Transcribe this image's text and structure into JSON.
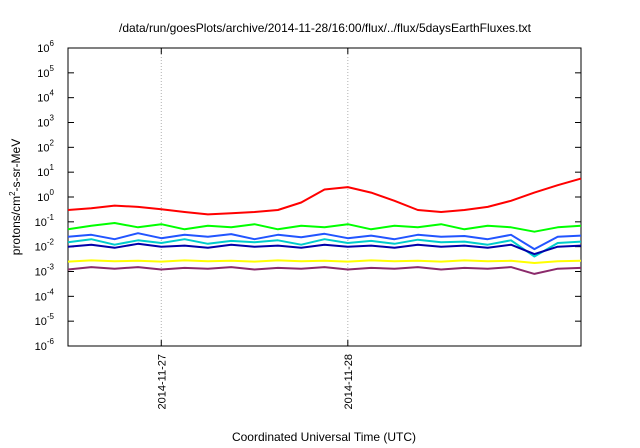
{
  "chart_data": {
    "type": "line",
    "title": "/data/run/goesPlots/archive/2014-11-28/16:00/flux/../flux/5daysEarthFluxes.txt",
    "xlabel": "Coordinated Universal Time (UTC)",
    "ylabel": "protons/cm²-s-sr-MeV",
    "y_scale": "log",
    "ylim": [
      1e-06,
      1000000.0
    ],
    "y_ticks": [
      {
        "base": "10",
        "exp": "-6"
      },
      {
        "base": "10",
        "exp": "-5"
      },
      {
        "base": "10",
        "exp": "-4"
      },
      {
        "base": "10",
        "exp": "-3"
      },
      {
        "base": "10",
        "exp": "-2"
      },
      {
        "base": "10",
        "exp": "-1"
      },
      {
        "base": "10",
        "exp": "0"
      },
      {
        "base": "10",
        "exp": "1"
      },
      {
        "base": "10",
        "exp": "2"
      },
      {
        "base": "10",
        "exp": "3"
      },
      {
        "base": "10",
        "exp": "4"
      },
      {
        "base": "10",
        "exp": "5"
      },
      {
        "base": "10",
        "exp": "6"
      }
    ],
    "xlim": [
      "2014-11-26T12:00",
      "2014-11-29T06:00"
    ],
    "x_ticks": [
      "2014-11-27",
      "2014-11-28"
    ],
    "grid": true,
    "x": [
      "2014-11-26T12:00",
      "2014-11-26T15:00",
      "2014-11-26T18:00",
      "2014-11-26T21:00",
      "2014-11-27T00:00",
      "2014-11-27T03:00",
      "2014-11-27T06:00",
      "2014-11-27T09:00",
      "2014-11-27T12:00",
      "2014-11-27T15:00",
      "2014-11-27T18:00",
      "2014-11-27T21:00",
      "2014-11-28T00:00",
      "2014-11-28T03:00",
      "2014-11-28T06:00",
      "2014-11-28T09:00",
      "2014-11-28T12:00",
      "2014-11-28T15:00",
      "2014-11-28T18:00",
      "2014-11-28T21:00",
      "2014-11-29T00:00",
      "2014-11-29T03:00",
      "2014-11-29T06:00"
    ],
    "series": [
      {
        "color": "#ff0000",
        "values": [
          0.3,
          0.35,
          0.45,
          0.4,
          0.32,
          0.25,
          0.2,
          0.22,
          0.25,
          0.3,
          0.6,
          2.0,
          2.5,
          1.5,
          0.7,
          0.3,
          0.25,
          0.3,
          0.4,
          0.7,
          1.5,
          3.0,
          5.5
        ]
      },
      {
        "color": "#00ff00",
        "values": [
          0.05,
          0.07,
          0.09,
          0.06,
          0.08,
          0.05,
          0.07,
          0.06,
          0.08,
          0.05,
          0.07,
          0.06,
          0.08,
          0.05,
          0.07,
          0.06,
          0.08,
          0.05,
          0.07,
          0.06,
          0.04,
          0.06,
          0.07
        ]
      },
      {
        "color": "#00cccc",
        "values": [
          0.015,
          0.02,
          0.012,
          0.018,
          0.014,
          0.02,
          0.013,
          0.017,
          0.015,
          0.018,
          0.012,
          0.02,
          0.014,
          0.017,
          0.013,
          0.019,
          0.015,
          0.016,
          0.012,
          0.018,
          0.004,
          0.014,
          0.016
        ]
      },
      {
        "color": "#2255ff",
        "values": [
          0.025,
          0.03,
          0.02,
          0.035,
          0.022,
          0.03,
          0.025,
          0.032,
          0.02,
          0.03,
          0.024,
          0.033,
          0.022,
          0.028,
          0.02,
          0.03,
          0.025,
          0.027,
          0.02,
          0.03,
          0.008,
          0.025,
          0.028
        ]
      },
      {
        "color": "#0000aa",
        "values": [
          0.01,
          0.012,
          0.009,
          0.013,
          0.01,
          0.011,
          0.009,
          0.012,
          0.01,
          0.011,
          0.009,
          0.012,
          0.01,
          0.011,
          0.009,
          0.012,
          0.01,
          0.011,
          0.009,
          0.012,
          0.005,
          0.01,
          0.011
        ]
      },
      {
        "color": "#ffff00",
        "values": [
          0.0025,
          0.0028,
          0.0026,
          0.0027,
          0.0025,
          0.0028,
          0.0026,
          0.0027,
          0.0025,
          0.0028,
          0.0026,
          0.0027,
          0.0025,
          0.0028,
          0.0026,
          0.0027,
          0.0025,
          0.0028,
          0.0026,
          0.0027,
          0.0022,
          0.0026,
          0.0027
        ]
      },
      {
        "color": "#8b2a6b",
        "values": [
          0.0012,
          0.0015,
          0.0013,
          0.0015,
          0.0012,
          0.0014,
          0.0013,
          0.0015,
          0.0012,
          0.0014,
          0.0013,
          0.0015,
          0.0012,
          0.0014,
          0.0013,
          0.0015,
          0.0012,
          0.0014,
          0.0013,
          0.0015,
          0.0008,
          0.0013,
          0.0014
        ]
      }
    ]
  }
}
